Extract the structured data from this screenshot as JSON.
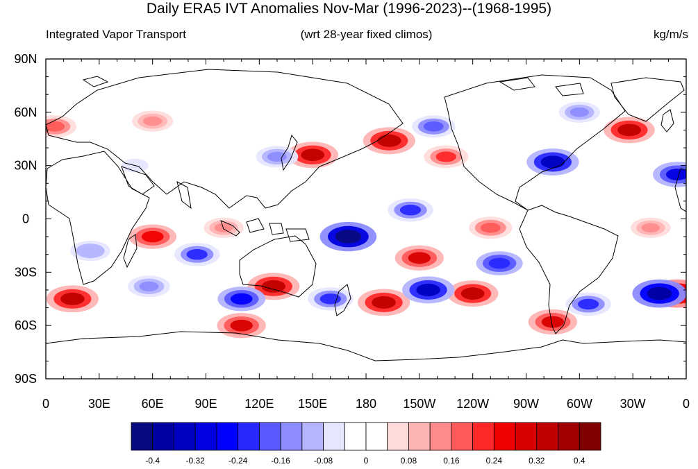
{
  "title": "Daily ERA5 IVT Anomalies Nov-Mar (1996-2023)--(1968-1995)",
  "subtitle_left": "Integrated Vapor Transport",
  "subtitle_center": "(wrt 28-year fixed climos)",
  "subtitle_right": "kg/m/s",
  "lon_ticks": [
    "0",
    "30E",
    "60E",
    "90E",
    "120E",
    "150E",
    "180",
    "150W",
    "120W",
    "90W",
    "60W",
    "30W",
    "0"
  ],
  "lat_ticks": [
    "90N",
    "60N",
    "30N",
    "0",
    "30S",
    "60S",
    "90S"
  ],
  "colorbar": {
    "colors": [
      "#0a0a80",
      "#0000a0",
      "#0000c0",
      "#0000e0",
      "#0000ff",
      "#2828ff",
      "#5a5aff",
      "#8c8cff",
      "#b4b4ff",
      "#e6e6ff",
      "#ffffff",
      "#ffffff",
      "#ffdcdc",
      "#ffb4b4",
      "#ff8c8c",
      "#ff5a5a",
      "#ff2828",
      "#f00000",
      "#d80000",
      "#c00000",
      "#a00000",
      "#800000"
    ],
    "labels": [
      "-0.4",
      "-0.32",
      "-0.24",
      "-0.16",
      "-0.08",
      "0",
      "0.08",
      "0.16",
      "0.24",
      "0.32",
      "0.4"
    ]
  },
  "anomalies": [
    {
      "lon": 355,
      "lat": -42,
      "v": 0.38
    },
    {
      "lon": 15,
      "lat": -45,
      "v": 0.34
    },
    {
      "lon": 128,
      "lat": -38,
      "v": 0.34
    },
    {
      "lon": 110,
      "lat": -60,
      "v": 0.28
    },
    {
      "lon": 150,
      "lat": 36,
      "v": 0.32
    },
    {
      "lon": 193,
      "lat": 44,
      "v": 0.34
    },
    {
      "lon": 190,
      "lat": -47,
      "v": 0.34
    },
    {
      "lon": 240,
      "lat": -42,
      "v": 0.32
    },
    {
      "lon": 285,
      "lat": -58,
      "v": 0.28
    },
    {
      "lon": 328,
      "lat": 50,
      "v": 0.32
    },
    {
      "lon": 210,
      "lat": -22,
      "v": 0.28
    },
    {
      "lon": 60,
      "lat": -10,
      "v": 0.26
    },
    {
      "lon": 225,
      "lat": 35,
      "v": 0.2
    },
    {
      "lon": 250,
      "lat": -5,
      "v": 0.18
    },
    {
      "lon": 5,
      "lat": 52,
      "v": 0.18
    },
    {
      "lon": 100,
      "lat": -5,
      "v": 0.12
    },
    {
      "lon": 340,
      "lat": -5,
      "v": 0.12
    },
    {
      "lon": 60,
      "lat": 55,
      "v": 0.14
    },
    {
      "lon": 170,
      "lat": -10,
      "v": -0.42
    },
    {
      "lon": 215,
      "lat": -40,
      "v": -0.34
    },
    {
      "lon": 345,
      "lat": -42,
      "v": -0.38
    },
    {
      "lon": 285,
      "lat": 32,
      "v": -0.34
    },
    {
      "lon": 355,
      "lat": 25,
      "v": -0.28
    },
    {
      "lon": 85,
      "lat": -20,
      "v": -0.22
    },
    {
      "lon": 110,
      "lat": -45,
      "v": -0.26
    },
    {
      "lon": 160,
      "lat": -45,
      "v": -0.22
    },
    {
      "lon": 205,
      "lat": 5,
      "v": -0.22
    },
    {
      "lon": 255,
      "lat": -25,
      "v": -0.24
    },
    {
      "lon": 305,
      "lat": -48,
      "v": -0.22
    },
    {
      "lon": 130,
      "lat": 35,
      "v": -0.16
    },
    {
      "lon": 218,
      "lat": 52,
      "v": -0.18
    },
    {
      "lon": 58,
      "lat": -38,
      "v": -0.16
    },
    {
      "lon": 25,
      "lat": -18,
      "v": -0.12
    },
    {
      "lon": 300,
      "lat": 60,
      "v": -0.14
    },
    {
      "lon": 50,
      "lat": 30,
      "v": -0.08
    }
  ]
}
